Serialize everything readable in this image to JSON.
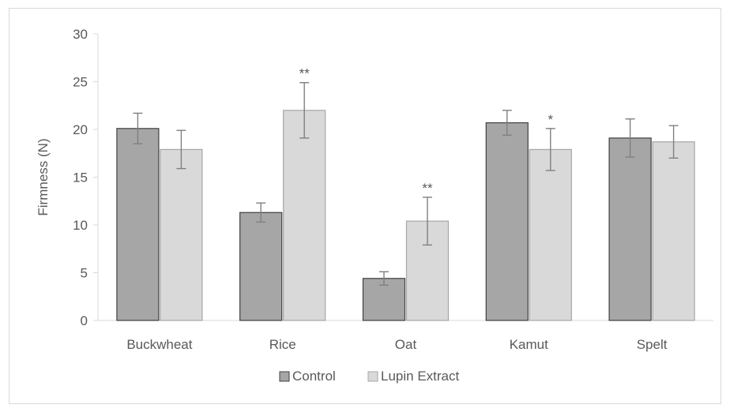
{
  "chart_data": {
    "type": "bar",
    "ylabel": "Firmness (N)",
    "xlabel": "",
    "ylim": [
      0,
      30
    ],
    "yticks": [
      0,
      5,
      10,
      15,
      20,
      25,
      30
    ],
    "categories": [
      "Buckwheat",
      "Rice",
      "Oat",
      "Kamut",
      "Spelt"
    ],
    "series": [
      {
        "name": "Control",
        "color": "#a6a6a6",
        "values": [
          20.1,
          11.3,
          4.4,
          20.7,
          19.1
        ],
        "errors": [
          1.6,
          1.0,
          0.7,
          1.3,
          2.0
        ],
        "significance": [
          "",
          "",
          "",
          "",
          ""
        ]
      },
      {
        "name": "Lupin Extract",
        "color": "#d9d9d9",
        "values": [
          17.9,
          22.0,
          10.4,
          17.9,
          18.7
        ],
        "errors": [
          2.0,
          2.9,
          2.5,
          2.2,
          1.7
        ],
        "significance": [
          "",
          "**",
          "**",
          "*",
          ""
        ]
      }
    ],
    "grid": false,
    "legend_position": "bottom"
  }
}
